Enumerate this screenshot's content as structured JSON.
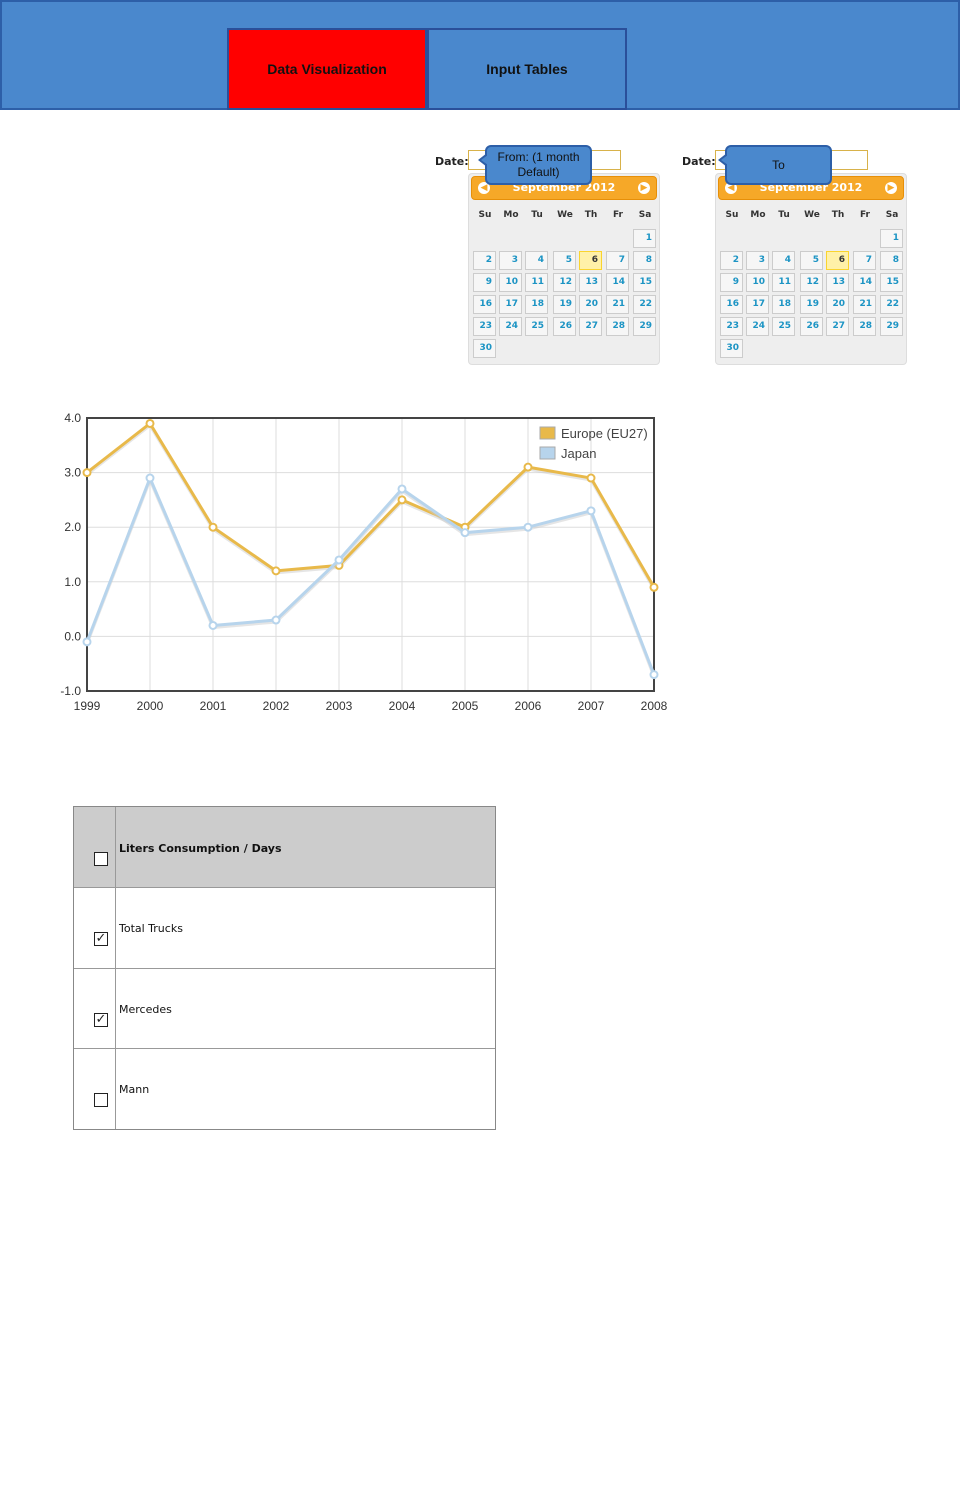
{
  "nav": {
    "tabs": [
      {
        "label": "Data Visualization",
        "active": true
      },
      {
        "label": "Input Tables",
        "active": false
      }
    ]
  },
  "colors": {
    "header": "#4a88cd",
    "active_tab": "#ff0000",
    "calendar_header": "#f6a828",
    "europe": "#e8b94a",
    "japan": "#b7d4ec"
  },
  "date_from": {
    "label": "Date:",
    "callout": "From: (1 month Default)",
    "month": "September 2012"
  },
  "date_to": {
    "label": "Date:",
    "callout": "To",
    "month": "September 2012"
  },
  "calendar": {
    "weekdays": [
      "Su",
      "Mo",
      "Tu",
      "We",
      "Th",
      "Fr",
      "Sa"
    ],
    "first_weekday_index": 6,
    "days": 30,
    "today": 6
  },
  "chart_data": {
    "type": "line",
    "x": [
      "1999",
      "2000",
      "2001",
      "2002",
      "2003",
      "2004",
      "2005",
      "2006",
      "2007",
      "2008"
    ],
    "ylim": [
      -1.0,
      4.0
    ],
    "yticks": [
      "-1.0",
      "0.0",
      "1.0",
      "2.0",
      "3.0",
      "4.0"
    ],
    "grid": true,
    "legend": "top-right",
    "series": [
      {
        "name": "Europe (EU27)",
        "color": "#e8b94a",
        "values": [
          3.0,
          3.9,
          2.0,
          1.2,
          1.3,
          2.5,
          2.0,
          3.1,
          2.9,
          0.9
        ]
      },
      {
        "name": "Japan",
        "color": "#b7d4ec",
        "values": [
          -0.1,
          2.9,
          0.2,
          0.3,
          1.4,
          2.7,
          1.9,
          2.0,
          2.3,
          -0.7
        ]
      }
    ]
  },
  "table": {
    "header": {
      "label": "Liters Consumption / Days",
      "checked": false
    },
    "rows": [
      {
        "label": "Total Trucks",
        "checked": true
      },
      {
        "label": "Mercedes",
        "checked": true
      },
      {
        "label": "Mann",
        "checked": false
      }
    ]
  }
}
